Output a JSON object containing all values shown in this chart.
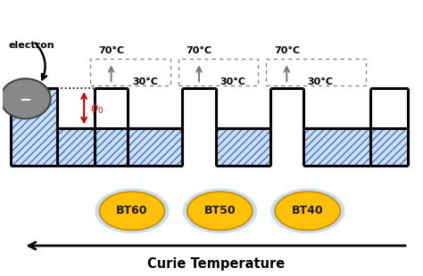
{
  "fig_width": 4.74,
  "fig_height": 3.1,
  "dpi": 100,
  "bg_color": "#ffffff",
  "hatch_color": "#4472c4",
  "hatch_bg": "#cce0f5",
  "line_color": "#000000",
  "bt_labels": [
    "BT60",
    "BT50",
    "BT40"
  ],
  "bt_gold": "#FFC107",
  "bt_rim": "#c8ddf0",
  "curie_label": "Curie Temperature",
  "phi_color": "#cc0000",
  "electron_gray": "#888888",
  "arrow_gray": "#555555",
  "temp_arrow_gray": "#777777"
}
